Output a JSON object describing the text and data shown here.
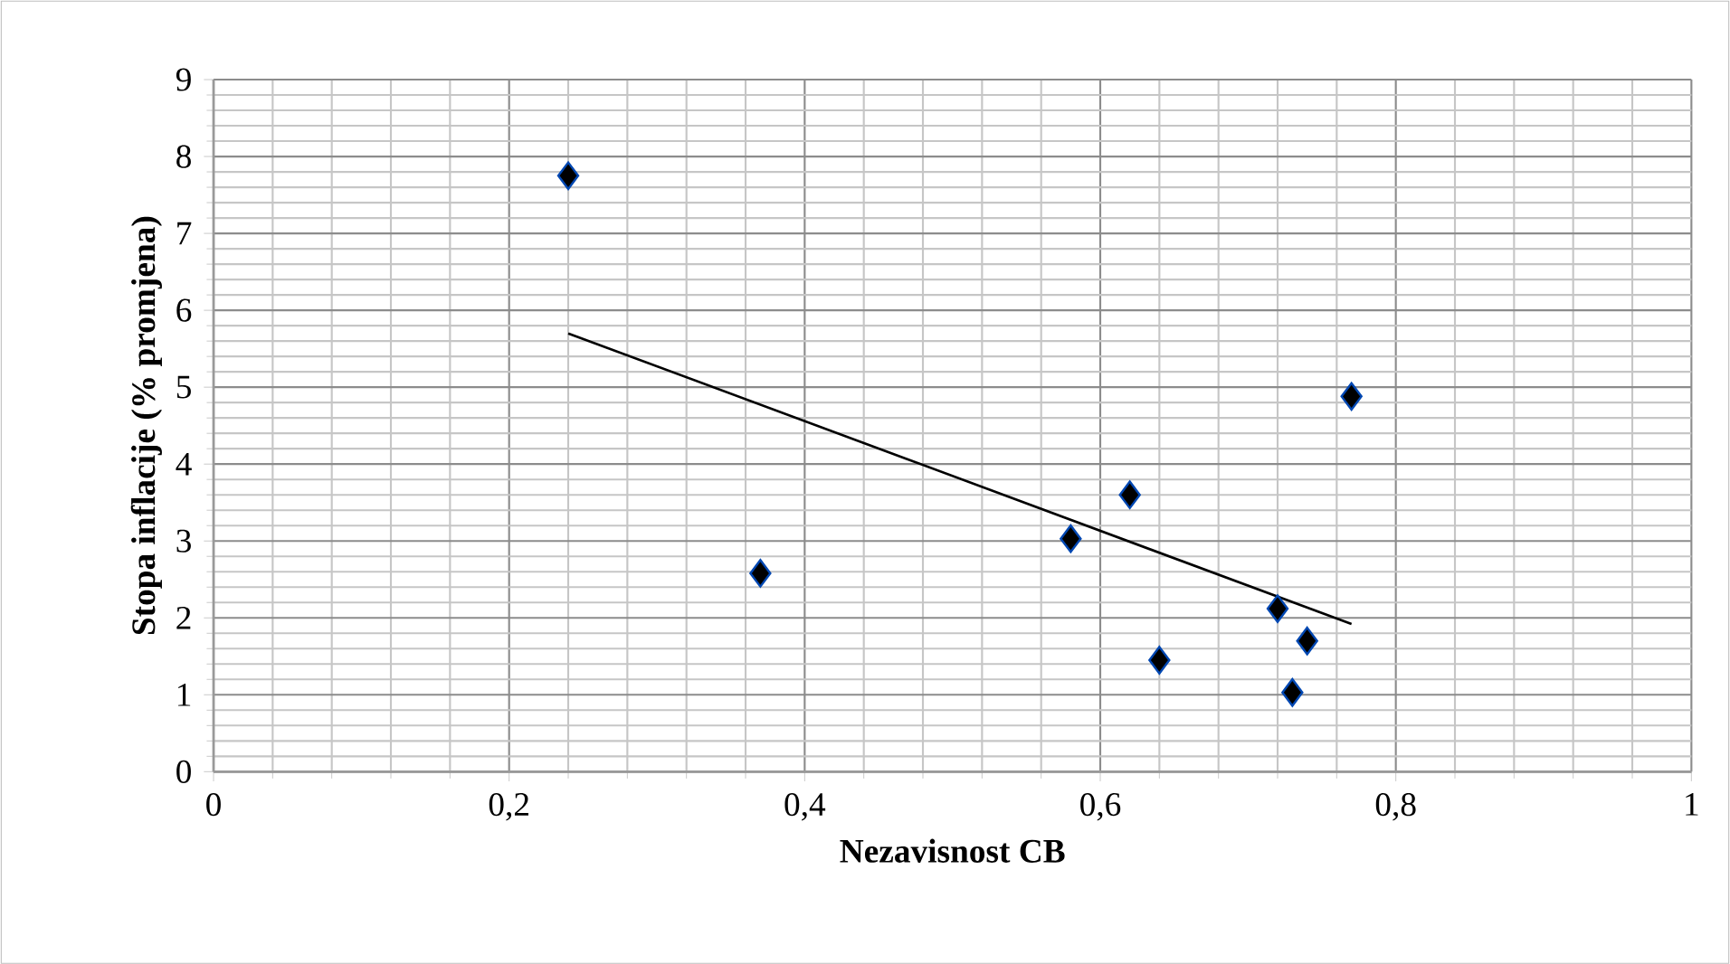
{
  "chart_data": {
    "type": "scatter",
    "xlabel": "Nezavisnost CB",
    "ylabel": "Stopa inflacije (% promjena)",
    "xlim": [
      0,
      1
    ],
    "ylim": [
      0,
      9
    ],
    "xticks": [
      0,
      {
        "value": 0.2,
        "label": "0,2"
      },
      {
        "value": 0.4,
        "label": "0,4"
      },
      {
        "value": 0.6,
        "label": "0,6"
      },
      {
        "value": 0.8,
        "label": "0,8"
      },
      1
    ],
    "yticks": [
      0,
      1,
      2,
      3,
      4,
      5,
      6,
      7,
      8,
      9
    ],
    "grid": true,
    "series": [
      {
        "marker": "diamond",
        "color": "#000000",
        "x": [
          0.24,
          0.37,
          0.58,
          0.62,
          0.64,
          0.72,
          0.73,
          0.74,
          0.77
        ],
        "values": [
          7.75,
          2.58,
          3.03,
          3.6,
          1.45,
          2.12,
          1.03,
          1.7,
          4.88
        ]
      },
      {
        "type": "line",
        "color": "#000000",
        "x": [
          0.24,
          0.77
        ],
        "values": [
          5.7,
          1.92
        ]
      }
    ]
  }
}
